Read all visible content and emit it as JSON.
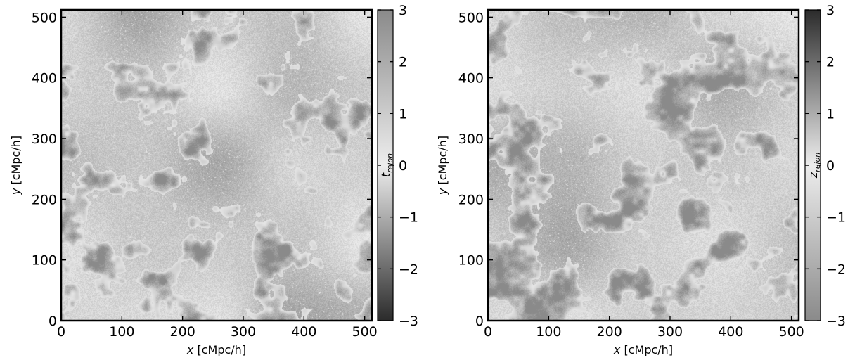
{
  "chart_data": [
    {
      "type": "heatmap",
      "xlabel": {
        "symbol": "x",
        "unit": "[cMpc/h]"
      },
      "ylabel": {
        "symbol": "y",
        "unit": "[cMpc/h]"
      },
      "xlim": [
        0,
        512
      ],
      "ylim": [
        0,
        512
      ],
      "xticks": [
        0,
        100,
        200,
        300,
        400,
        500
      ],
      "yticks": [
        0,
        100,
        200,
        300,
        400,
        500
      ],
      "colorbar": {
        "label": {
          "base": "t",
          "sub": "rejon"
        },
        "range": [
          -3,
          3
        ],
        "ticks": [
          3,
          2,
          1,
          0,
          -1,
          -2,
          -3
        ],
        "tick_labels": [
          "3",
          "2",
          "1",
          "0",
          "−1",
          "−2",
          "−3"
        ],
        "colormap": "gray, diverging, light at 0, dark at ±3",
        "top_color": "#8a8a8a",
        "mid_color": "#ededed",
        "bottom_color": "#2b2b2b"
      },
      "seed": 11
    },
    {
      "type": "heatmap",
      "xlabel": {
        "symbol": "x",
        "unit": "[cMpc/h]"
      },
      "ylabel": {
        "symbol": "y",
        "unit": "[cMpc/h]"
      },
      "xlim": [
        0,
        512
      ],
      "ylim": [
        0,
        512
      ],
      "xticks": [
        0,
        100,
        200,
        300,
        400,
        500
      ],
      "yticks": [
        0,
        100,
        200,
        300,
        400,
        500
      ],
      "colorbar": {
        "label": {
          "base": "z",
          "sub": "rejon"
        },
        "range": [
          -3,
          3
        ],
        "ticks": [
          3,
          2,
          1,
          0,
          -1,
          -2,
          -3
        ],
        "tick_labels": [
          "3",
          "2",
          "1",
          "0",
          "−1",
          "−2",
          "−3"
        ],
        "colormap": "gray, diverging, light at 0, dark at ±3",
        "top_color": "#2b2b2b",
        "mid_color": "#ededed",
        "bottom_color": "#8a8a8a"
      },
      "seed": 29
    }
  ]
}
